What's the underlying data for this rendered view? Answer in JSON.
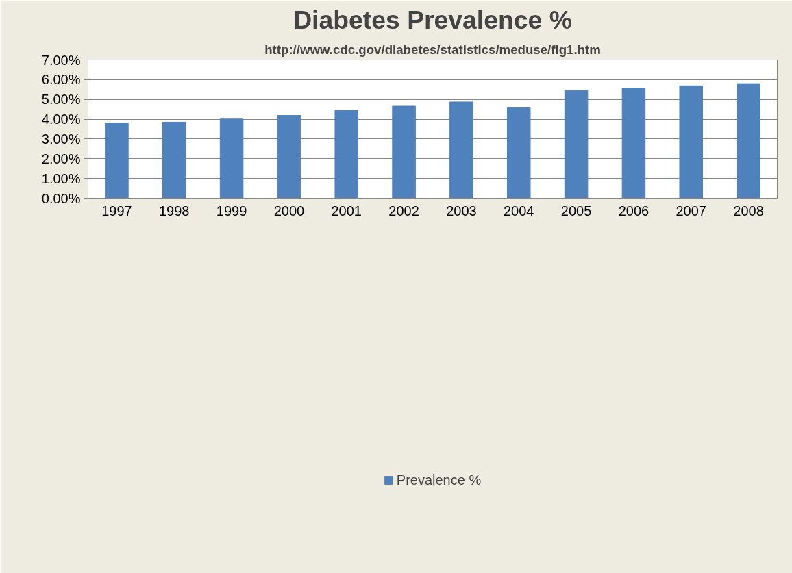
{
  "chart_data": {
    "type": "bar",
    "title": "Diabetes Prevalence %",
    "subtitle": "http://www.cdc.gov/diabetes/statistics/meduse/fig1.htm",
    "categories": [
      "1997",
      "1998",
      "1999",
      "2000",
      "2001",
      "2002",
      "2003",
      "2004",
      "2005",
      "2006",
      "2007",
      "2008"
    ],
    "series": [
      {
        "name": "Prevalence %",
        "color": "#4f81bd",
        "values": [
          3.81,
          3.85,
          4.01,
          4.19,
          4.45,
          4.66,
          4.87,
          4.58,
          5.45,
          5.58,
          5.69,
          5.8
        ]
      }
    ],
    "ylim": [
      0,
      7
    ],
    "yticks": [
      {
        "value": 0,
        "label": "0.00%"
      },
      {
        "value": 1,
        "label": "1.00%"
      },
      {
        "value": 2,
        "label": "2.00%"
      },
      {
        "value": 3,
        "label": "3.00%"
      },
      {
        "value": 4,
        "label": "4.00%"
      },
      {
        "value": 5,
        "label": "5.00%"
      },
      {
        "value": 6,
        "label": "6.00%"
      },
      {
        "value": 7,
        "label": "7.00%"
      }
    ],
    "grid": "y",
    "legend": "bottom"
  }
}
